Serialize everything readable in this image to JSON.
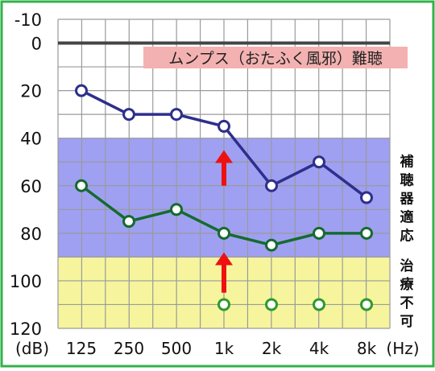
{
  "chart_data": {
    "type": "line",
    "title": "",
    "banner": "ムンプス（おたふく風邪）難聴",
    "x_tick_labels": [
      "125",
      "250",
      "500",
      "1k",
      "2k",
      "4k",
      "8k"
    ],
    "x_unit": "(Hz)",
    "y_unit": "(dB)",
    "y_ticks": [
      -10,
      0,
      20,
      40,
      60,
      80,
      100,
      120
    ],
    "ylim": [
      -10,
      120
    ],
    "y_reversed": true,
    "grid": true,
    "zones": [
      {
        "label": "補聴器適応",
        "from": 40,
        "to": 90,
        "color": "#9fa0f2"
      },
      {
        "label": "治療不可",
        "from": 90,
        "to": 120,
        "color": "#f6f59d"
      }
    ],
    "series": [
      {
        "values": [
          20,
          30,
          30,
          35,
          60,
          50,
          65
        ],
        "color": "#2e2f8c"
      },
      {
        "values": [
          60,
          75,
          70,
          80,
          85,
          80,
          80
        ],
        "color": "#146b2e"
      },
      {
        "values": [
          null,
          null,
          null,
          110,
          110,
          110,
          110
        ],
        "color": "#2e9a2e",
        "marker_only": true
      }
    ],
    "arrows": [
      {
        "x": "1k",
        "from": 60,
        "to": 45,
        "color": "#ee1111"
      },
      {
        "x": "1k",
        "from": 105,
        "to": 88,
        "color": "#ee1111"
      }
    ],
    "border_color": "#33b24a",
    "zero_line_color": "#444444"
  }
}
